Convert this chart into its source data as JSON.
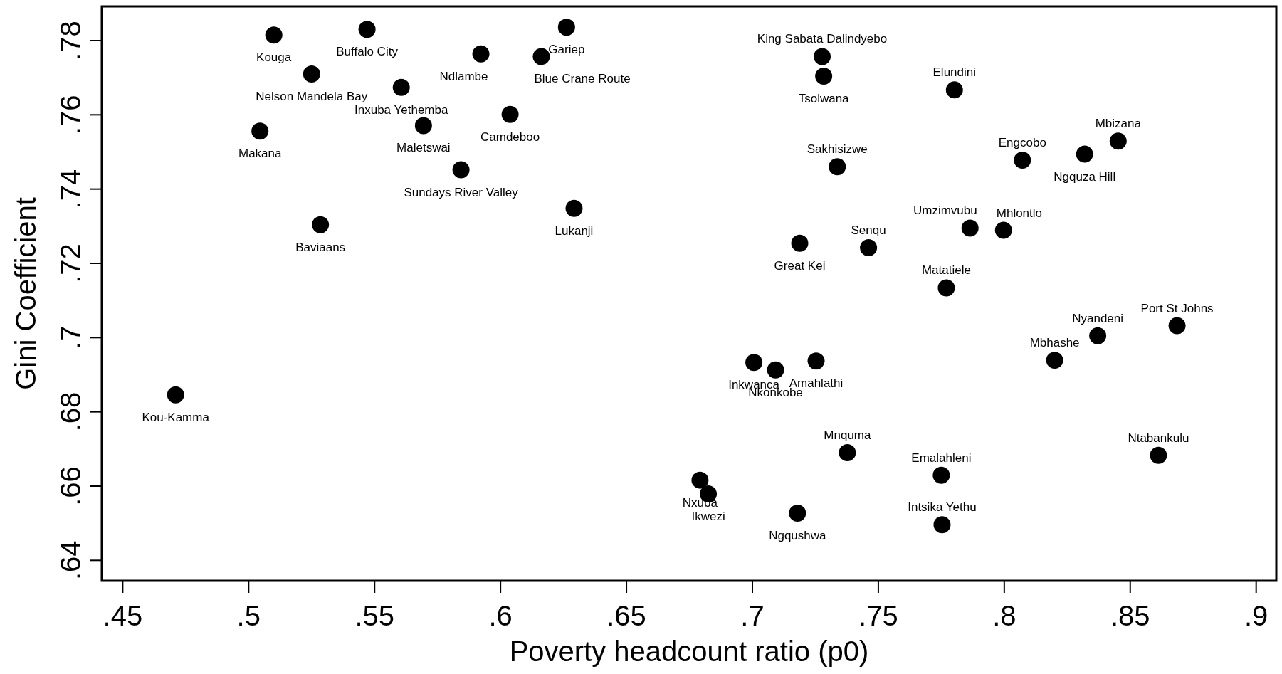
{
  "chart_data": {
    "type": "scatter",
    "xlabel": "Poverty headcount ratio (p0)",
    "ylabel": "Gini Coefficient",
    "xlim": [
      0.4417,
      0.908
    ],
    "ylim": [
      0.6345,
      0.7892
    ],
    "xticks": [
      {
        "value": 0.45,
        "label": ".45"
      },
      {
        "value": 0.5,
        "label": ".5"
      },
      {
        "value": 0.55,
        "label": ".55"
      },
      {
        "value": 0.6,
        "label": ".6"
      },
      {
        "value": 0.65,
        "label": ".65"
      },
      {
        "value": 0.7,
        "label": ".7"
      },
      {
        "value": 0.75,
        "label": ".75"
      },
      {
        "value": 0.8,
        "label": ".8"
      },
      {
        "value": 0.85,
        "label": ".85"
      },
      {
        "value": 0.9,
        "label": ".9"
      }
    ],
    "yticks": [
      {
        "value": 0.64,
        "label": ".64"
      },
      {
        "value": 0.66,
        "label": ".66"
      },
      {
        "value": 0.68,
        "label": ".68"
      },
      {
        "value": 0.7,
        "label": ".7"
      },
      {
        "value": 0.72,
        "label": ".72"
      },
      {
        "value": 0.74,
        "label": ".74"
      },
      {
        "value": 0.76,
        "label": ".76"
      },
      {
        "value": 0.78,
        "label": ".78"
      }
    ],
    "grid": false,
    "marker": "circle",
    "series": [
      {
        "color": "#000000",
        "x": [
          0.51,
          0.547,
          0.525,
          0.5045,
          0.5606,
          0.5694,
          0.5922,
          0.6262,
          0.6162,
          0.6038,
          0.5843,
          0.6292,
          0.5285,
          0.471,
          0.7277,
          0.7283,
          0.7802,
          0.7337,
          0.8072,
          0.8319,
          0.8452,
          0.7188,
          0.7461,
          0.7864,
          0.7997,
          0.777,
          0.8371,
          0.8686,
          0.82,
          0.8612,
          0.775,
          0.7753,
          0.7377,
          0.7179,
          0.6792,
          0.6825,
          0.7006,
          0.7092,
          0.7253
        ],
        "values": [
          0.7815,
          0.783,
          0.771,
          0.7556,
          0.7674,
          0.7571,
          0.7764,
          0.7836,
          0.7757,
          0.7601,
          0.7452,
          0.7348,
          0.7304,
          0.6846,
          0.7757,
          0.7704,
          0.7667,
          0.746,
          0.7478,
          0.7494,
          0.7529,
          0.7254,
          0.7242,
          0.7295,
          0.7289,
          0.7134,
          0.7005,
          0.7032,
          0.6939,
          0.6683,
          0.6629,
          0.6496,
          0.669,
          0.6527,
          0.6616,
          0.6579,
          0.6933,
          0.6913,
          0.6937
        ]
      }
    ],
    "annotations": [
      {
        "text": "Kouga",
        "x": 0.51,
        "y": 0.7815
      },
      {
        "text": "Buffalo City",
        "x": 0.547,
        "y": 0.783
      },
      {
        "text": "Nelson Mandela Bay",
        "x": 0.525,
        "y": 0.771
      },
      {
        "text": "Makana",
        "x": 0.5045,
        "y": 0.7556
      },
      {
        "text": "Inxuba Yethemba",
        "x": 0.5606,
        "y": 0.7674
      },
      {
        "text": "Maletswai",
        "x": 0.5694,
        "y": 0.7571
      },
      {
        "text": "Ndlambe",
        "x": 0.5922,
        "y": 0.7764
      },
      {
        "text": "Gariep",
        "x": 0.6262,
        "y": 0.7836
      },
      {
        "text": "Blue Crane Route",
        "x": 0.6162,
        "y": 0.7757
      },
      {
        "text": "Camdeboo",
        "x": 0.6038,
        "y": 0.7601
      },
      {
        "text": "Sundays River Valley",
        "x": 0.5843,
        "y": 0.7452
      },
      {
        "text": "Lukanji",
        "x": 0.6292,
        "y": 0.7348
      },
      {
        "text": "Baviaans",
        "x": 0.5285,
        "y": 0.7304
      },
      {
        "text": "Kou-Kamma",
        "x": 0.471,
        "y": 0.6846
      },
      {
        "text": "King Sabata Dalindyebo",
        "x": 0.7277,
        "y": 0.7757
      },
      {
        "text": "Tsolwana",
        "x": 0.7283,
        "y": 0.7704
      },
      {
        "text": "Elundini",
        "x": 0.7802,
        "y": 0.7667
      },
      {
        "text": "Sakhisizwe",
        "x": 0.7337,
        "y": 0.746
      },
      {
        "text": "Engcobo",
        "x": 0.8072,
        "y": 0.7478
      },
      {
        "text": "Ngquza Hill",
        "x": 0.8319,
        "y": 0.7494
      },
      {
        "text": "Mbizana",
        "x": 0.8452,
        "y": 0.7529
      },
      {
        "text": "Great Kei",
        "x": 0.7188,
        "y": 0.7254
      },
      {
        "text": "Senqu",
        "x": 0.7461,
        "y": 0.7242
      },
      {
        "text": "Umzimvubu",
        "x": 0.7864,
        "y": 0.7295
      },
      {
        "text": "Mhlontlo",
        "x": 0.7997,
        "y": 0.7289
      },
      {
        "text": "Matatiele",
        "x": 0.777,
        "y": 0.7134
      },
      {
        "text": "Nyandeni",
        "x": 0.8371,
        "y": 0.7005
      },
      {
        "text": "Port St Johns",
        "x": 0.8686,
        "y": 0.7032
      },
      {
        "text": "Mbhashe",
        "x": 0.82,
        "y": 0.6939
      },
      {
        "text": "Ntabankulu",
        "x": 0.8612,
        "y": 0.6683
      },
      {
        "text": "Emalahleni",
        "x": 0.775,
        "y": 0.6629
      },
      {
        "text": "Intsika Yethu",
        "x": 0.7753,
        "y": 0.6496
      },
      {
        "text": "Mnquma",
        "x": 0.7377,
        "y": 0.669
      },
      {
        "text": "Ngqushwa",
        "x": 0.7179,
        "y": 0.6527
      },
      {
        "text": "Nxuba",
        "x": 0.6792,
        "y": 0.6616
      },
      {
        "text": "Ikwezi",
        "x": 0.6825,
        "y": 0.6579
      },
      {
        "text": "Inkwanca",
        "x": 0.7006,
        "y": 0.6933
      },
      {
        "text": "Nkonkobe",
        "x": 0.7092,
        "y": 0.6913
      },
      {
        "text": "Amahlathi",
        "x": 0.7253,
        "y": 0.6937
      }
    ]
  }
}
